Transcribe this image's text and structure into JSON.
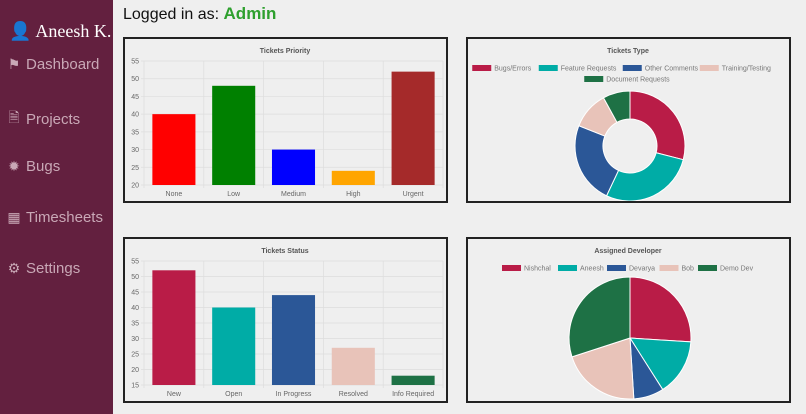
{
  "sidebar": {
    "user": "Aneesh K.",
    "items": [
      {
        "label": "Dashboard",
        "icon": "flag-icon"
      },
      {
        "label": "Projects",
        "icon": "file-code-icon"
      },
      {
        "label": "Bugs",
        "icon": "bug-icon"
      },
      {
        "label": "Timesheets",
        "icon": "calendar-icon"
      },
      {
        "label": "Settings",
        "icon": "gear-icon"
      }
    ]
  },
  "header": {
    "prefix": "Logged in as:",
    "role": "Admin"
  },
  "chart_data": [
    {
      "type": "bar",
      "title": "Tickets Priority",
      "categories": [
        "None",
        "Low",
        "Medium",
        "High",
        "Urgent"
      ],
      "values": [
        40,
        48,
        30,
        24,
        52
      ],
      "colors": [
        "#ff0000",
        "#008000",
        "#0000ff",
        "#ffa500",
        "#a52a2a"
      ],
      "ylim": [
        20,
        55
      ],
      "yticks": [
        20,
        25,
        30,
        35,
        40,
        45,
        50,
        55
      ],
      "grid": true
    },
    {
      "type": "pie",
      "donut": true,
      "title": "Tickets Type",
      "categories": [
        "Bugs/Errors",
        "Feature Requests",
        "Other Comments",
        "Training/Testing",
        "Document Requests"
      ],
      "values": [
        29,
        28,
        24,
        11,
        8
      ],
      "colors": [
        "#b91c47",
        "#00aca6",
        "#2b5797",
        "#e8c3b9",
        "#1e7145"
      ],
      "legend": "top"
    },
    {
      "type": "bar",
      "title": "Tickets Status",
      "categories": [
        "New",
        "Open",
        "In Progress",
        "Resolved",
        "Info Required"
      ],
      "values": [
        52,
        40,
        44,
        27,
        18
      ],
      "colors": [
        "#b91c47",
        "#00aca6",
        "#2b5797",
        "#e8c3b9",
        "#1e7145"
      ],
      "ylim": [
        15,
        55
      ],
      "yticks": [
        15,
        20,
        25,
        30,
        35,
        40,
        45,
        50,
        55
      ],
      "grid": true
    },
    {
      "type": "pie",
      "donut": false,
      "title": "Assigned Developer",
      "categories": [
        "Nishchal",
        "Aneesh",
        "Devarya",
        "Bob",
        "Demo Dev"
      ],
      "values": [
        26,
        15,
        8,
        21,
        30
      ],
      "colors": [
        "#b91c47",
        "#00aca6",
        "#2b5797",
        "#e8c3b9",
        "#1e7145"
      ],
      "legend": "top"
    }
  ]
}
